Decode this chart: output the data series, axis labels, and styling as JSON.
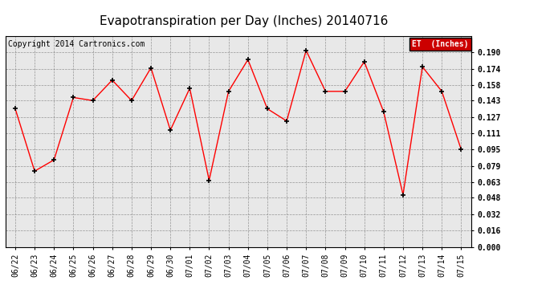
{
  "title": "Evapotranspiration per Day (Inches) 20140716",
  "copyright": "Copyright 2014 Cartronics.com",
  "legend_label": "ET  (Inches)",
  "dates": [
    "06/22",
    "06/23",
    "06/24",
    "06/25",
    "06/26",
    "06/27",
    "06/28",
    "06/29",
    "06/30",
    "07/01",
    "07/02",
    "07/03",
    "07/04",
    "07/05",
    "07/06",
    "07/07",
    "07/08",
    "07/09",
    "07/10",
    "07/11",
    "07/12",
    "07/13",
    "07/14",
    "07/15"
  ],
  "values": [
    0.135,
    0.074,
    0.085,
    0.146,
    0.143,
    0.163,
    0.143,
    0.175,
    0.114,
    0.155,
    0.065,
    0.152,
    0.183,
    0.135,
    0.123,
    0.192,
    0.152,
    0.152,
    0.181,
    0.132,
    0.051,
    0.176,
    0.152,
    0.095
  ],
  "ylim": [
    0.0,
    0.206
  ],
  "yticks": [
    0.0,
    0.016,
    0.032,
    0.048,
    0.063,
    0.079,
    0.095,
    0.111,
    0.127,
    0.143,
    0.158,
    0.174,
    0.19
  ],
  "line_color": "red",
  "marker_color": "black",
  "bg_color": "#ffffff",
  "plot_bg_color": "#e8e8e8",
  "title_fontsize": 11,
  "copyright_fontsize": 7,
  "legend_bg": "#cc0000",
  "legend_text_color": "white",
  "tick_fontsize": 7,
  "ytick_fontsize": 7
}
